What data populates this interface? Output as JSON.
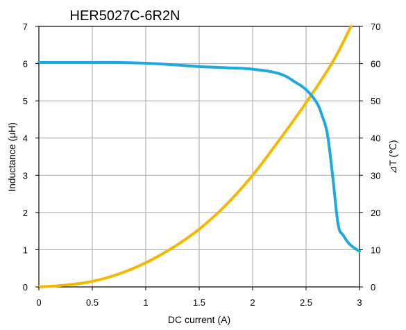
{
  "chart_data": {
    "type": "line",
    "title": "HER5027C-6R2N",
    "xlabel": "DC current (A)",
    "ylabel": "Inductance (μH)",
    "y2label": "⊿T (℃)",
    "xlim": [
      0,
      3
    ],
    "ylim": [
      0,
      7
    ],
    "y2lim": [
      0,
      70
    ],
    "x_ticks": [
      "0",
      "0.5",
      "1",
      "1.5",
      "2",
      "2.5",
      "3"
    ],
    "y_ticks": [
      "0",
      "1",
      "2",
      "3",
      "4",
      "5",
      "6",
      "7"
    ],
    "y2_ticks": [
      "0",
      "10",
      "20",
      "30",
      "40",
      "50",
      "60",
      "70"
    ],
    "grid": true,
    "series": [
      {
        "axis": "left",
        "color": "#1ea7e1",
        "x": [
          0,
          0.25,
          0.5,
          0.75,
          1.0,
          1.25,
          1.5,
          1.75,
          2.0,
          2.25,
          2.4,
          2.5,
          2.6,
          2.65,
          2.7,
          2.75,
          2.8,
          2.85,
          2.9,
          2.95,
          3.0
        ],
        "values": [
          6.03,
          6.03,
          6.03,
          6.03,
          6.01,
          5.97,
          5.92,
          5.89,
          5.85,
          5.73,
          5.5,
          5.3,
          4.95,
          4.6,
          4.1,
          2.95,
          1.68,
          1.38,
          1.17,
          1.05,
          0.96
        ]
      },
      {
        "axis": "right",
        "color": "#f5b800",
        "x": [
          0,
          0.25,
          0.5,
          0.75,
          1.0,
          1.25,
          1.5,
          1.75,
          2.0,
          2.25,
          2.5,
          2.75,
          2.92
        ],
        "values": [
          0,
          0.5,
          1.5,
          3.5,
          6.5,
          10.5,
          15.5,
          22.0,
          30.0,
          39.5,
          49.5,
          60.5,
          70
        ]
      }
    ]
  }
}
